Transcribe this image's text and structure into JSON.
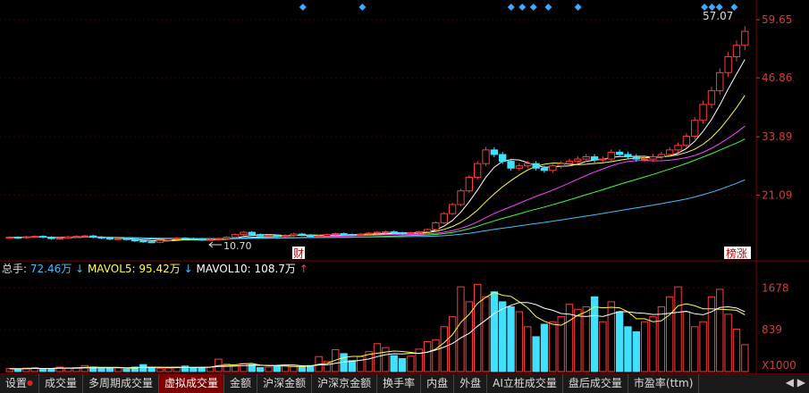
{
  "price_axis": {
    "labels": [
      "59.65",
      "46.86",
      "33.89",
      "21.09"
    ],
    "values": [
      59.65,
      46.86,
      33.89,
      21.09
    ],
    "color": "#d23c3c"
  },
  "volume_axis": {
    "labels": [
      "1678",
      "839"
    ],
    "values": [
      1678,
      839
    ],
    "multiplier": "X1000"
  },
  "annotations": {
    "high": "57.07",
    "low": "10.70",
    "fin_marker": "财",
    "rank_marker": "榜涨"
  },
  "volume_legend": {
    "total_label": "总手:",
    "total_value": "72.46万",
    "mavol5_label": "MAVOL5:",
    "mavol5_value": "95.42万",
    "mavol10_label": "MAVOL10:",
    "mavol10_value": "108.7万",
    "arrow_down": "↓",
    "arrow_up": "↑"
  },
  "tabs": [
    {
      "label": "设置",
      "active": false,
      "dot": true
    },
    {
      "label": "成交量",
      "active": false
    },
    {
      "label": "多周期成交量",
      "active": false
    },
    {
      "label": "虚拟成交量",
      "active": true
    },
    {
      "label": "金额",
      "active": false
    },
    {
      "label": "沪深金额",
      "active": false
    },
    {
      "label": "沪深京金额",
      "active": false
    },
    {
      "label": "换手率",
      "active": false
    },
    {
      "label": "内盘",
      "active": false
    },
    {
      "label": "外盘",
      "active": false
    },
    {
      "label": "AI立桩成交量",
      "active": false
    },
    {
      "label": "盘后成交量",
      "active": false
    },
    {
      "label": "市盈率(ttm)",
      "active": false
    }
  ],
  "tab_nav": {
    "left": "◀",
    "right": "▶"
  },
  "colors": {
    "up": "#ff3c3c",
    "down": "#40e0ff",
    "ma5": "#ffffff",
    "ma10": "#ffff40",
    "ma20": "#ff40ff",
    "ma30": "#40ff40",
    "ma60": "#40c0ff",
    "marker": "#3fa8ff"
  },
  "chart_data": {
    "type": "candlestick",
    "price_range": [
      8,
      62
    ],
    "volume_range": [
      0,
      1900
    ],
    "candles_summary": "Long sideways base around 10.7 to 12, then sharp rally to ~31, consolidation near 27-30, then parabolic rise to 57.07",
    "close_path": [
      11.8,
      11.7,
      11.9,
      12.0,
      11.8,
      11.5,
      11.6,
      11.9,
      12.0,
      12.1,
      11.8,
      11.6,
      11.4,
      11.5,
      11.3,
      11.0,
      10.8,
      10.7,
      11.1,
      11.4,
      11.6,
      11.5,
      11.4,
      11.2,
      11.3,
      11.5,
      11.8,
      12.4,
      12.9,
      12.4,
      12.1,
      12.2,
      12.0,
      12.2,
      12.5,
      12.3,
      12.0,
      12.1,
      12.4,
      12.6,
      12.4,
      12.3,
      12.5,
      12.7,
      12.9,
      13.0,
      12.8,
      12.6,
      12.8,
      13.0,
      13.5,
      15.0,
      17.0,
      19.0,
      22.0,
      25.0,
      28.0,
      31.0,
      30.0,
      28.5,
      27.0,
      27.5,
      28.0,
      27.0,
      26.5,
      27.5,
      28.0,
      28.5,
      29.0,
      29.5,
      28.8,
      29.0,
      30.5,
      30.0,
      29.5,
      29.0,
      29.0,
      29.5,
      30.0,
      31.0,
      32.0,
      34.0,
      37.5,
      41.0,
      44.0,
      48.0,
      51.5,
      54.0,
      57.07
    ],
    "volume_path": [
      60,
      50,
      70,
      80,
      55,
      60,
      90,
      70,
      80,
      120,
      90,
      60,
      70,
      80,
      50,
      90,
      140,
      80,
      60,
      70,
      90,
      110,
      80,
      70,
      90,
      250,
      150,
      120,
      160,
      140,
      80,
      90,
      110,
      130,
      100,
      90,
      120,
      300,
      200,
      440,
      360,
      220,
      300,
      400,
      560,
      480,
      320,
      260,
      310,
      450,
      600,
      640,
      900,
      1100,
      1700,
      1400,
      1750,
      1500,
      1600,
      1400,
      1300,
      1200,
      900,
      700,
      950,
      1000,
      1100,
      1350,
      1250,
      1300,
      1500,
      1000,
      1400,
      1200,
      900,
      800,
      1000,
      1100,
      1300,
      1500,
      1700,
      1200,
      900,
      1000,
      1500,
      1650,
      1150,
      850,
      540
    ]
  }
}
